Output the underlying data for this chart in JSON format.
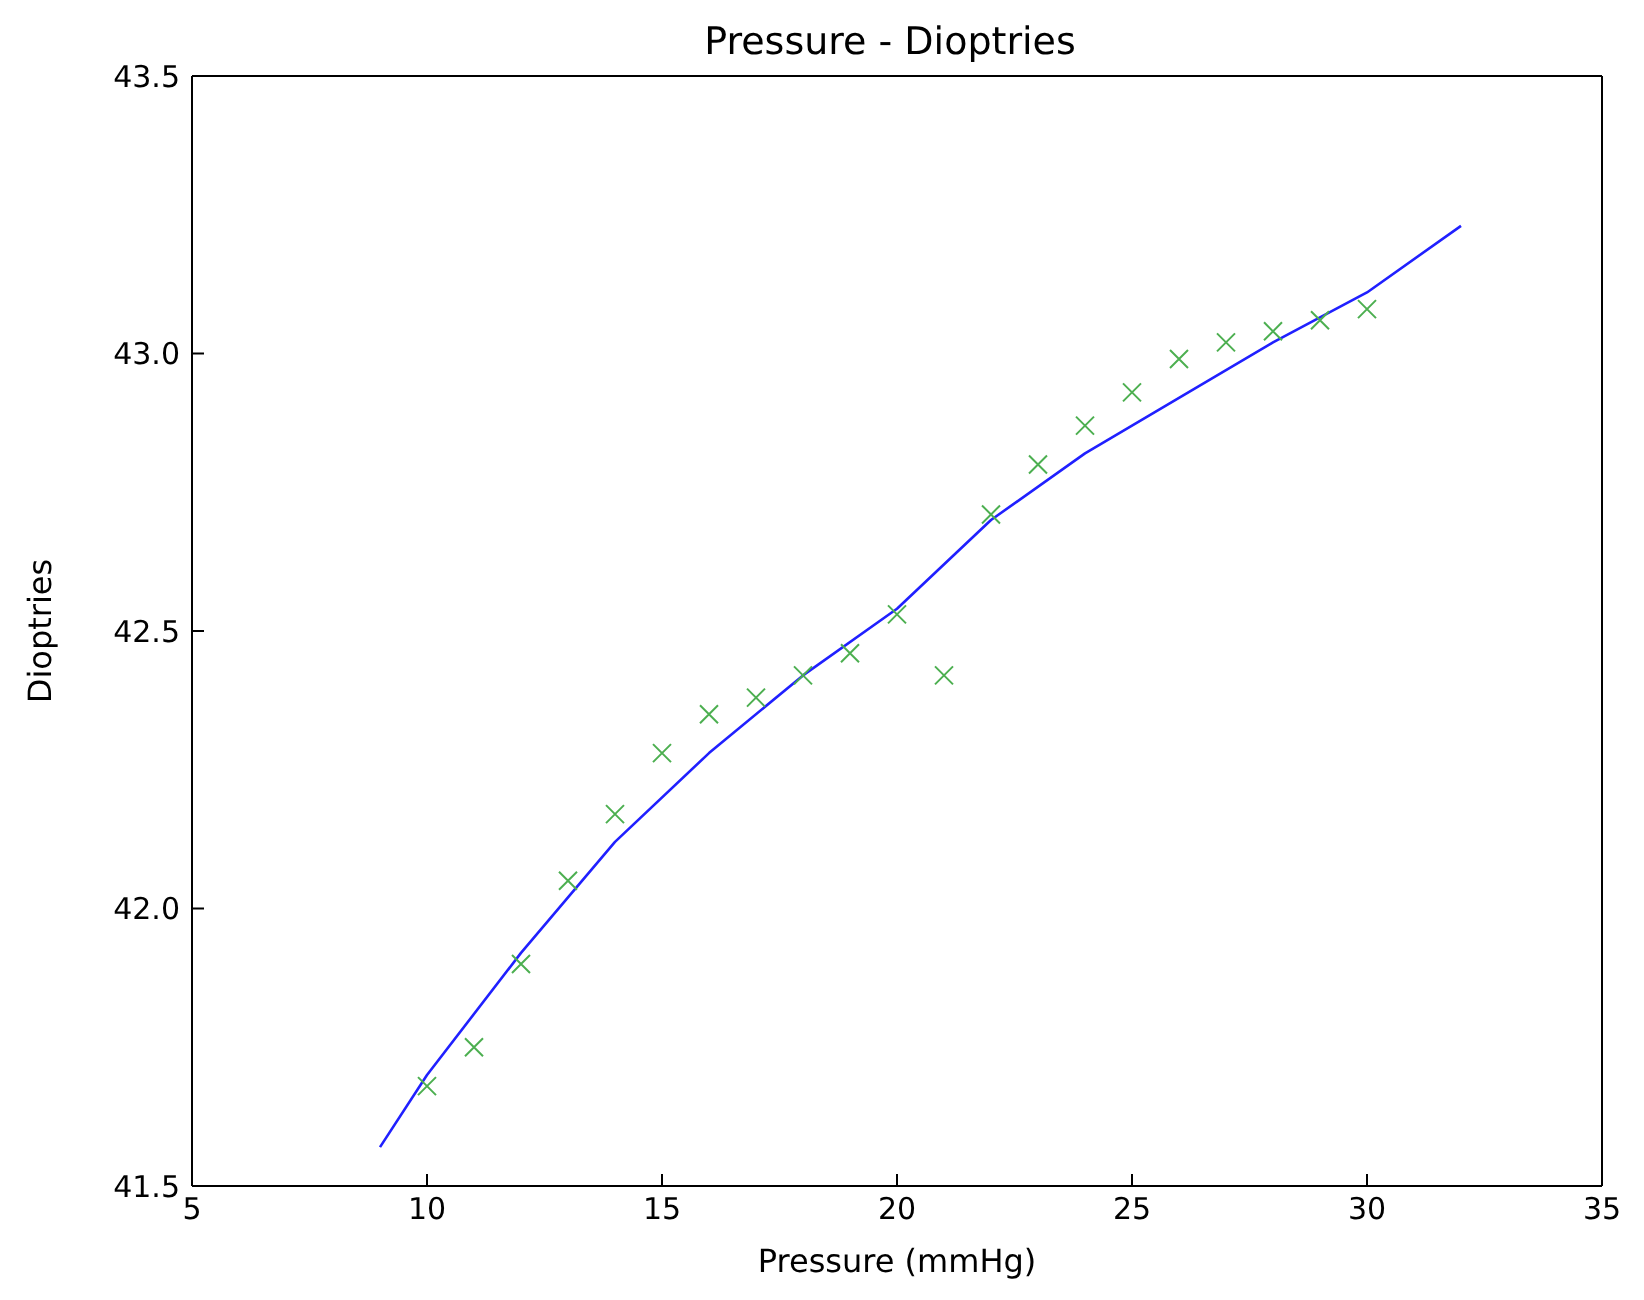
{
  "chart_data": {
    "type": "scatter",
    "title": "Pressure - Dioptries",
    "xlabel": "Pressure (mmHg)",
    "ylabel": "Dioptries",
    "xlim": [
      5,
      35
    ],
    "xticks": [
      5,
      10,
      15,
      20,
      25,
      30,
      35
    ],
    "ylim": [
      41.5,
      43.5
    ],
    "yticks": [
      {
        "value": 41.5,
        "label": "41.5"
      },
      {
        "value": 42,
        "label": "42.0"
      },
      {
        "value": 42.5,
        "label": "42.5"
      },
      {
        "value": 43,
        "label": "43.0"
      },
      {
        "value": 43.5,
        "label": "43.5"
      }
    ],
    "legend": false,
    "series": [
      {
        "marker": "cross",
        "color": "#4caf50",
        "x": [
          10,
          11,
          12,
          13,
          14,
          15,
          16,
          17,
          18,
          19,
          20,
          21,
          22,
          23,
          24,
          25,
          26,
          27,
          28,
          29,
          30
        ],
        "values": [
          41.68,
          41.75,
          41.9,
          42.05,
          42.17,
          42.28,
          42.35,
          42.38,
          42.42,
          42.46,
          42.53,
          42.42,
          42.71,
          42.8,
          42.87,
          42.93,
          42.99,
          43.02,
          43.04,
          43.06,
          43.08
        ]
      },
      {
        "type": "line",
        "marker": "none",
        "line_style": "solid",
        "color": "#2020ff",
        "x": [
          9,
          10,
          12,
          14,
          16,
          18,
          20,
          22,
          24,
          26,
          28,
          30,
          32
        ],
        "values": [
          41.57,
          41.7,
          41.92,
          42.12,
          42.28,
          42.42,
          42.54,
          42.7,
          42.82,
          42.92,
          43.02,
          43.11,
          43.23
        ]
      }
    ]
  }
}
